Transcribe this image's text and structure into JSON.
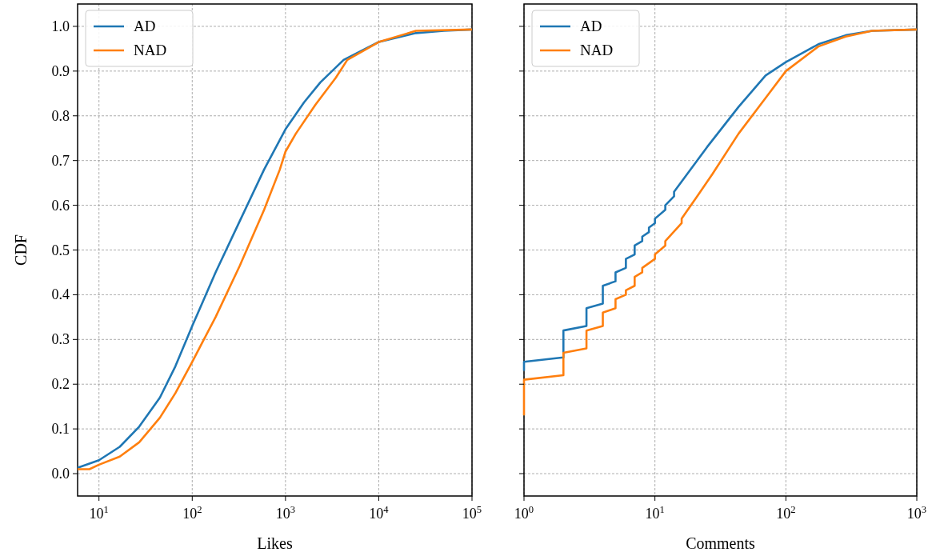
{
  "chart_data": [
    {
      "type": "line",
      "xlabel": "Likes",
      "ylabel": "CDF",
      "log": "x",
      "grid": true,
      "legend": "top left",
      "line_style": "solid",
      "xlim": [
        5.9,
        100000
      ],
      "xticks": [
        {
          "value": 10,
          "label": "10$^{1}$"
        },
        {
          "value": 100,
          "label": "10$^{2}$"
        },
        {
          "value": 1000,
          "label": "10$^{3}$"
        },
        {
          "value": 10000,
          "label": "10$^{4}$"
        },
        {
          "value": 100000,
          "label": "10$^{5}$"
        }
      ],
      "ylim": [
        -0.05,
        1.05
      ],
      "yticks": [
        {
          "value": 0,
          "label": "0.0"
        },
        0.1,
        0.2,
        0.3,
        0.4,
        0.5,
        0.6,
        0.7,
        0.8,
        0.9,
        {
          "value": 1,
          "label": "1.0"
        }
      ],
      "series": [
        {
          "name": "AD",
          "color": "#1f77b4",
          "x": [
            5.9,
            10,
            16.7,
            27,
            45,
            66,
            100,
            178,
            324,
            590,
            1000,
            1580,
            2370,
            4200,
            10000,
            25000,
            50000,
            100000
          ],
          "values": [
            0.013,
            0.03,
            0.06,
            0.105,
            0.17,
            0.24,
            0.33,
            0.45,
            0.565,
            0.68,
            0.77,
            0.83,
            0.875,
            0.925,
            0.965,
            0.985,
            0.99,
            0.993
          ]
        },
        {
          "name": "NAD",
          "color": "#ff7f0e",
          "x": [
            5.9,
            7.9,
            10,
            16.7,
            27,
            45,
            66,
            100,
            178,
            324,
            590,
            870,
            1000,
            1290,
            2100,
            3460,
            4600,
            10000,
            25000,
            100000
          ],
          "values": [
            0.01,
            0.01,
            0.02,
            0.038,
            0.07,
            0.125,
            0.18,
            0.25,
            0.35,
            0.465,
            0.59,
            0.68,
            0.72,
            0.76,
            0.825,
            0.885,
            0.925,
            0.965,
            0.99,
            0.993
          ]
        }
      ]
    },
    {
      "type": "line",
      "xlabel": "Comments",
      "log": "x",
      "grid": true,
      "legend": "top left",
      "line_style": "solid",
      "tick_labels": "x",
      "xlim": [
        1,
        1000
      ],
      "xticks": [
        {
          "value": 1,
          "label": "10$^{0}$"
        },
        {
          "value": 10,
          "label": "10$^{1}$"
        },
        {
          "value": 100,
          "label": "10$^{2}$"
        },
        {
          "value": 1000,
          "label": "10$^{3}$"
        }
      ],
      "ylim": [
        -0.05,
        1.05
      ],
      "yticks": [
        0,
        0.1,
        0.2,
        0.3,
        0.4,
        0.5,
        0.6,
        0.7,
        0.8,
        0.9,
        1
      ],
      "series": [
        {
          "name": "AD",
          "color": "#1f77b4",
          "x": [
            1,
            1,
            2,
            2,
            3,
            3,
            4,
            4,
            5,
            5,
            6,
            6,
            7,
            7,
            8,
            8,
            9,
            9,
            10,
            10,
            12,
            12,
            14,
            14,
            21,
            25,
            31,
            43.5,
            70,
            100,
            177,
            286,
            455,
            1000
          ],
          "values": [
            0.23,
            0.25,
            0.26,
            0.32,
            0.33,
            0.37,
            0.38,
            0.42,
            0.43,
            0.45,
            0.46,
            0.48,
            0.49,
            0.51,
            0.52,
            0.53,
            0.54,
            0.55,
            0.56,
            0.57,
            0.59,
            0.6,
            0.62,
            0.63,
            0.7,
            0.73,
            0.765,
            0.82,
            0.89,
            0.92,
            0.96,
            0.98,
            0.99,
            0.993
          ]
        },
        {
          "name": "NAD",
          "color": "#ff7f0e",
          "x": [
            1,
            1,
            2,
            2,
            3,
            3,
            4,
            4,
            5,
            5,
            6,
            6,
            7,
            7,
            8,
            8,
            10,
            10,
            12,
            12,
            16,
            16,
            21,
            27.5,
            43.5,
            70,
            100,
            177,
            286,
            455,
            1000
          ],
          "values": [
            0.13,
            0.21,
            0.22,
            0.27,
            0.28,
            0.32,
            0.33,
            0.36,
            0.37,
            0.39,
            0.4,
            0.41,
            0.42,
            0.44,
            0.45,
            0.46,
            0.48,
            0.49,
            0.51,
            0.52,
            0.56,
            0.57,
            0.62,
            0.67,
            0.76,
            0.84,
            0.9,
            0.955,
            0.977,
            0.99,
            0.993
          ]
        }
      ]
    }
  ]
}
